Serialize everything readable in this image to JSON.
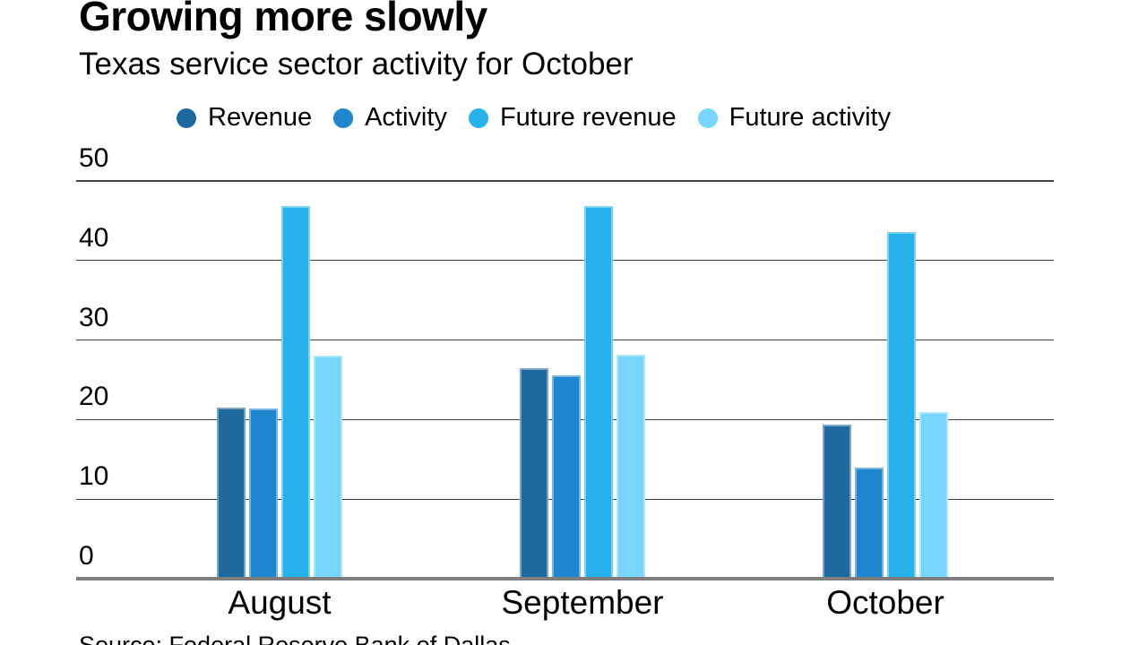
{
  "header": {
    "title": "Growing more slowly",
    "subtitle": "Texas service sector activity for October"
  },
  "source_note": "Source: Federal Reserve Bank of Dallas",
  "chart_data": {
    "type": "bar",
    "title": "Growing more slowly",
    "subtitle": "Texas service sector activity for October",
    "categories": [
      "August",
      "September",
      "October"
    ],
    "series": [
      {
        "name": "Revenue",
        "color": "#1e6a9e",
        "values": [
          21.5,
          26.5,
          19.4
        ]
      },
      {
        "name": "Activity",
        "color": "#1e86ce",
        "values": [
          21.4,
          25.6,
          14.0
        ]
      },
      {
        "name": "Future revenue",
        "color": "#28b2ec",
        "values": [
          46.8,
          46.9,
          43.6
        ]
      },
      {
        "name": "Future activity",
        "color": "#76d6fd",
        "values": [
          28.0,
          28.1,
          20.9
        ]
      }
    ],
    "xlabel": "",
    "ylabel": "",
    "ylim": [
      0,
      50
    ],
    "yticks": [
      0,
      10,
      20,
      30,
      40,
      50
    ],
    "grid": "horizontal",
    "grid_color": "#424242",
    "axis_color": "#7d7d7d",
    "text_color": "#000000",
    "legend_position": "top"
  }
}
